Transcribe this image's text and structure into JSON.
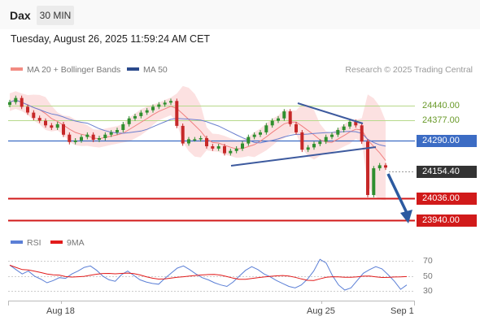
{
  "header": {
    "symbol": "Dax",
    "timeframe": "30 MIN"
  },
  "timestamp": "Tuesday, August 26, 2025 11:59:24 AM CET",
  "legend": {
    "bb_label": "MA 20 + Bollinger Bands",
    "ma50_label": "MA 50",
    "credit": "Research © 2025 Trading Central"
  },
  "colors": {
    "resistance": "#b7d98b",
    "pivot": "#3c6cc4",
    "support": "#d11a1a",
    "up": "#2f8f2f",
    "down": "#c62828",
    "bands": "#fbdcdc",
    "ma20": "#f08080",
    "ma50": "#6a7fcf",
    "rsi": "#5b7fd6",
    "rsi_ma": "#e21b1b"
  },
  "levels": {
    "resistance_2": "24440.00",
    "resistance_1": "24377.00",
    "pivot": "24290.00",
    "current": "24154.40",
    "support_1": "24036.00",
    "support_2": "23940.00"
  },
  "rsi": {
    "label": "RSI",
    "ma_label": "9MA",
    "levels": [
      "70",
      "50",
      "30"
    ]
  },
  "x_axis": [
    "Aug 18",
    "Aug 25",
    "Sep 1"
  ],
  "chart_data": {
    "type": "line",
    "instrument": "Dax",
    "timeframe": "30 MIN",
    "y_levels": {
      "resistance": [
        24440,
        24377
      ],
      "pivot": 24290,
      "last": 24154.4,
      "support": [
        24036,
        23940
      ]
    },
    "ylim": [
      23900,
      24530
    ],
    "x_ticks": [
      "Aug 18",
      "Aug 25",
      "Sep 1"
    ],
    "price_series": [
      24440,
      24458,
      24420,
      24395,
      24372,
      24360,
      24340,
      24330,
      24345,
      24300,
      24268,
      24275,
      24290,
      24300,
      24278,
      24285,
      24300,
      24310,
      24320,
      24345,
      24370,
      24380,
      24395,
      24405,
      24420,
      24430,
      24438,
      24445,
      24338,
      24262,
      24280,
      24280,
      24285,
      24250,
      24240,
      24250,
      24220,
      24230,
      24240,
      24262,
      24290,
      24300,
      24310,
      24340,
      24360,
      24370,
      24400,
      24345,
      24310,
      24235,
      24245,
      24260,
      24270,
      24290,
      24300,
      24320,
      24335,
      24355,
      24340,
      24270,
      24040,
      24155,
      24168,
      24158
    ],
    "rsi_series": [
      64,
      58,
      52,
      56,
      49,
      45,
      40,
      43,
      47,
      46,
      52,
      56,
      61,
      63,
      57,
      49,
      44,
      42,
      51,
      56,
      50,
      44,
      41,
      39,
      38,
      46,
      53,
      60,
      63,
      58,
      52,
      47,
      44,
      40,
      37,
      35,
      41,
      49,
      57,
      62,
      58,
      52,
      48,
      43,
      39,
      35,
      33,
      37,
      45,
      56,
      72,
      67,
      50,
      37,
      30,
      33,
      43,
      53,
      58,
      62,
      59,
      51,
      42,
      31,
      37
    ],
    "rsi_levels": [
      70,
      50,
      30
    ],
    "rsi_ylim": [
      20,
      80
    ]
  }
}
